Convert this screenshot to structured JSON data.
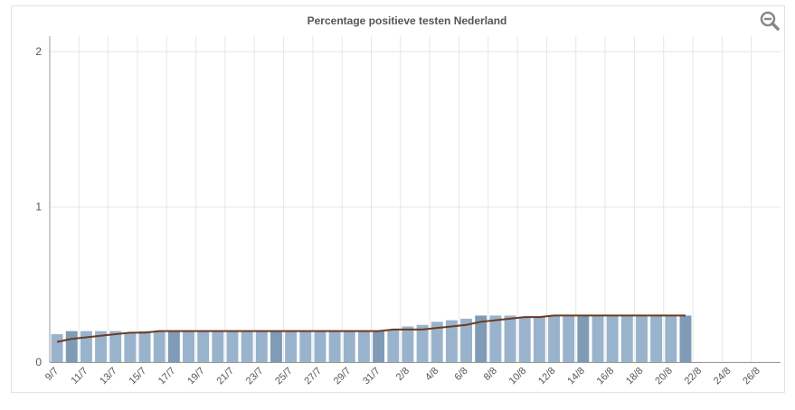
{
  "chart_data": {
    "type": "bar",
    "title": "Percentage positieve testen Nederland",
    "categories": [
      "9/7",
      null,
      "11/7",
      null,
      "13/7",
      null,
      "15/7",
      null,
      "17/7",
      null,
      "19/7",
      null,
      "21/7",
      null,
      "23/7",
      null,
      "25/7",
      null,
      "27/7",
      null,
      "29/7",
      null,
      "31/7",
      null,
      "2/8",
      null,
      "4/8",
      null,
      "6/8",
      null,
      "8/8",
      null,
      "10/8",
      null,
      "12/8",
      null,
      "14/8",
      null,
      "16/8",
      null,
      "18/8",
      null,
      "20/8",
      null,
      "22/8",
      null,
      "24/8",
      null,
      "26/8",
      null
    ],
    "bars": {
      "values": [
        0.18,
        0.2,
        0.2,
        0.2,
        0.2,
        0.19,
        0.2,
        0.2,
        0.2,
        0.2,
        0.2,
        0.2,
        0.2,
        0.2,
        0.2,
        0.2,
        0.2,
        0.2,
        0.2,
        0.2,
        0.2,
        0.2,
        0.2,
        0.21,
        0.23,
        0.24,
        0.26,
        0.27,
        0.28,
        0.3,
        0.3,
        0.3,
        0.29,
        0.29,
        0.3,
        0.3,
        0.3,
        0.3,
        0.3,
        0.3,
        0.3,
        0.3,
        0.3,
        0.3,
        null,
        null,
        null,
        null,
        null,
        null
      ],
      "colors": [
        "#9ab3cc",
        "#7f9bb5",
        "#9ab3cc",
        "#9ab3cc",
        "#9ab3cc",
        "#9ab3cc",
        "#9ab3cc",
        "#9ab3cc",
        "#7f9bb5",
        "#9ab3cc",
        "#9ab3cc",
        "#9ab3cc",
        "#9ab3cc",
        "#9ab3cc",
        "#9ab3cc",
        "#7f9bb5",
        "#9ab3cc",
        "#9ab3cc",
        "#9ab3cc",
        "#9ab3cc",
        "#9ab3cc",
        "#9ab3cc",
        "#7f9bb5",
        "#9ab3cc",
        "#9ab3cc",
        "#9ab3cc",
        "#9ab3cc",
        "#9ab3cc",
        "#9ab3cc",
        "#7f9bb5",
        "#9ab3cc",
        "#9ab3cc",
        "#9ab3cc",
        "#9ab3cc",
        "#9ab3cc",
        "#9ab3cc",
        "#7f9bb5",
        "#9ab3cc",
        "#9ab3cc",
        "#9ab3cc",
        "#9ab3cc",
        "#9ab3cc",
        "#9ab3cc",
        "#7f9bb5",
        "#9ab3cc",
        "#9ab3cc",
        "#9ab3cc",
        "#9ab3cc",
        "#9ab3cc",
        "#9ab3cc"
      ]
    },
    "line": {
      "color": "#6b3a22",
      "values": [
        0.13,
        0.15,
        0.16,
        0.17,
        0.18,
        0.19,
        0.19,
        0.2,
        0.2,
        0.2,
        0.2,
        0.2,
        0.2,
        0.2,
        0.2,
        0.2,
        0.2,
        0.2,
        0.2,
        0.2,
        0.2,
        0.2,
        0.2,
        0.21,
        0.21,
        0.21,
        0.22,
        0.23,
        0.24,
        0.26,
        0.27,
        0.28,
        0.29,
        0.29,
        0.3,
        0.3,
        0.3,
        0.3,
        0.3,
        0.3,
        0.3,
        0.3,
        0.3,
        0.3,
        null,
        null,
        null,
        null,
        null,
        null
      ]
    },
    "ylim": [
      0,
      2.1
    ],
    "yticks": [
      0,
      1,
      2
    ],
    "grid": true
  }
}
